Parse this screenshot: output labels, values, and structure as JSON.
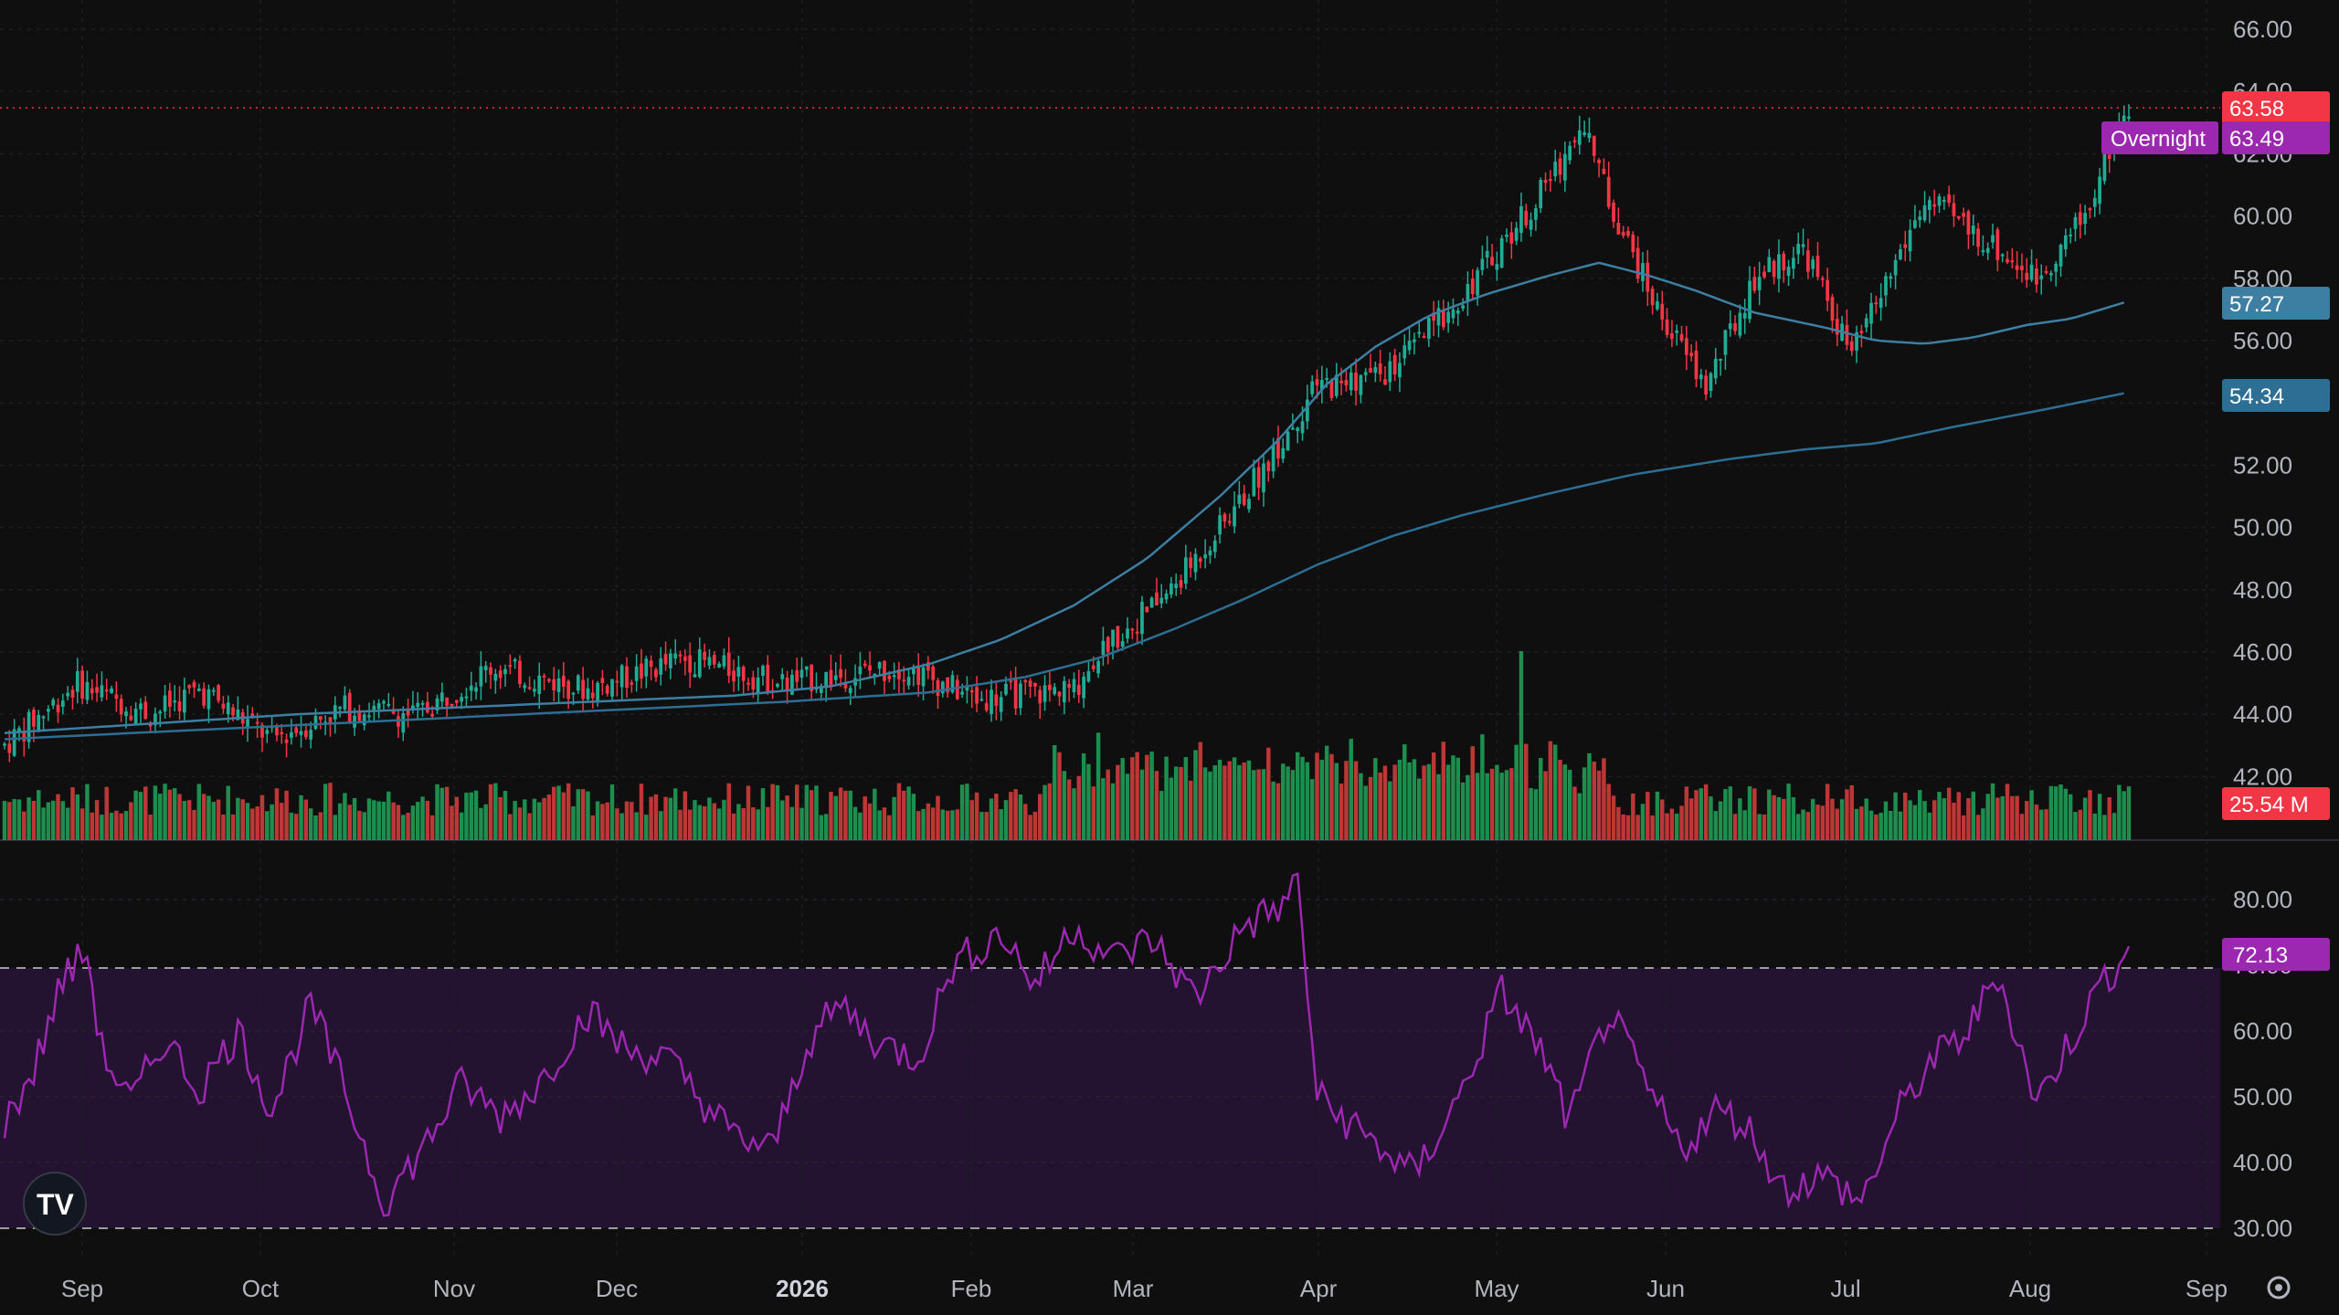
{
  "chart_data": {
    "type": "candlestick",
    "price_axis": {
      "range": [
        41,
        67
      ],
      "ticks": [
        "66.00",
        "64.00",
        "62.00",
        "60.00",
        "58.00",
        "56.00",
        "54.00",
        "52.00",
        "50.00",
        "48.00",
        "46.00",
        "44.00",
        "42.00"
      ]
    },
    "rsi_axis": {
      "range": [
        28,
        84
      ],
      "ticks": [
        "80.00",
        "70.00",
        "60.00",
        "50.00",
        "40.00",
        "30.00"
      ],
      "upper_band": 70,
      "lower_band": 30
    },
    "x_axis": {
      "labels": [
        "Sep",
        "Oct",
        "Nov",
        "Dec",
        "2026",
        "Feb",
        "Mar",
        "Apr",
        "May",
        "Jun",
        "Jul",
        "Aug",
        "Sep"
      ],
      "emphasized": [
        "2026"
      ]
    },
    "badges": {
      "last_price": "63.58",
      "overnight_label": "Overnight",
      "overnight_price": "63.49",
      "ma_fast": "57.27",
      "ma_slow": "54.34",
      "volume": "25.54 M",
      "rsi": "72.13"
    },
    "moving_average_fast": [
      [
        0,
        43.4
      ],
      [
        30,
        43.7
      ],
      [
        60,
        44.0
      ],
      [
        90,
        44.2
      ],
      [
        120,
        44.4
      ],
      [
        150,
        44.6
      ],
      [
        170,
        44.9
      ],
      [
        190,
        45.6
      ],
      [
        205,
        46.4
      ],
      [
        220,
        47.5
      ],
      [
        235,
        49.0
      ],
      [
        250,
        51.0
      ],
      [
        262,
        52.8
      ],
      [
        272,
        54.6
      ],
      [
        282,
        55.8
      ],
      [
        293,
        56.8
      ],
      [
        305,
        57.5
      ],
      [
        318,
        58.1
      ],
      [
        328,
        58.5
      ],
      [
        338,
        58.1
      ],
      [
        348,
        57.6
      ],
      [
        360,
        56.9
      ],
      [
        375,
        56.4
      ],
      [
        385,
        56.0
      ],
      [
        395,
        55.9
      ],
      [
        405,
        56.1
      ],
      [
        416,
        56.5
      ],
      [
        425,
        56.7
      ],
      [
        437,
        57.27
      ]
    ],
    "moving_average_slow": [
      [
        0,
        43.2
      ],
      [
        40,
        43.5
      ],
      [
        80,
        43.8
      ],
      [
        120,
        44.1
      ],
      [
        160,
        44.4
      ],
      [
        190,
        44.7
      ],
      [
        210,
        45.2
      ],
      [
        225,
        45.8
      ],
      [
        240,
        46.7
      ],
      [
        255,
        47.7
      ],
      [
        270,
        48.8
      ],
      [
        285,
        49.7
      ],
      [
        300,
        50.4
      ],
      [
        318,
        51.1
      ],
      [
        335,
        51.7
      ],
      [
        355,
        52.2
      ],
      [
        370,
        52.5
      ],
      [
        385,
        52.7
      ],
      [
        400,
        53.2
      ],
      [
        420,
        53.8
      ],
      [
        437,
        54.34
      ]
    ],
    "rsi_series": [
      [
        0,
        46
      ],
      [
        6,
        54
      ],
      [
        12,
        68
      ],
      [
        17,
        72
      ],
      [
        20,
        57
      ],
      [
        26,
        49
      ],
      [
        33,
        59
      ],
      [
        40,
        51
      ],
      [
        48,
        60
      ],
      [
        55,
        48
      ],
      [
        63,
        64
      ],
      [
        70,
        51
      ],
      [
        78,
        34
      ],
      [
        86,
        42
      ],
      [
        94,
        52
      ],
      [
        102,
        47
      ],
      [
        110,
        52
      ],
      [
        120,
        63
      ],
      [
        128,
        57
      ],
      [
        136,
        56
      ],
      [
        144,
        49
      ],
      [
        150,
        44
      ],
      [
        158,
        42
      ],
      [
        165,
        58
      ],
      [
        172,
        64
      ],
      [
        180,
        58
      ],
      [
        188,
        56
      ],
      [
        195,
        70
      ],
      [
        205,
        75
      ],
      [
        212,
        67
      ],
      [
        220,
        76
      ],
      [
        228,
        71
      ],
      [
        236,
        74
      ],
      [
        245,
        65
      ],
      [
        255,
        76
      ],
      [
        263,
        79
      ],
      [
        266,
        83
      ],
      [
        270,
        50
      ],
      [
        280,
        44
      ],
      [
        290,
        38
      ],
      [
        300,
        51
      ],
      [
        308,
        66
      ],
      [
        316,
        57
      ],
      [
        322,
        46
      ],
      [
        330,
        63
      ],
      [
        338,
        51
      ],
      [
        345,
        42
      ],
      [
        352,
        48
      ],
      [
        358,
        46
      ],
      [
        366,
        36
      ],
      [
        374,
        38
      ],
      [
        382,
        34
      ],
      [
        390,
        48
      ],
      [
        396,
        55
      ],
      [
        404,
        60
      ],
      [
        410,
        69
      ],
      [
        418,
        49
      ],
      [
        426,
        60
      ],
      [
        432,
        68
      ],
      [
        437,
        72.13
      ]
    ],
    "volume_max": 100
  }
}
